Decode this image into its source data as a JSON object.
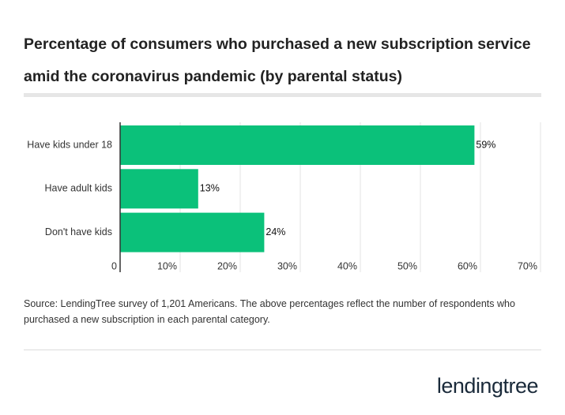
{
  "chart_data": {
    "type": "bar",
    "orientation": "horizontal",
    "title": "Percentage of consumers who purchased a new subscription service amid the coronavirus pandemic (by parental status)",
    "categories": [
      "Have kids under 18",
      "Have adult kids",
      "Don't have kids"
    ],
    "values": [
      59,
      13,
      24
    ],
    "value_labels": [
      "59%",
      "13%",
      "24%"
    ],
    "color": "#0bc17a",
    "xlim": [
      0,
      70
    ],
    "xticks": [
      0,
      {
        "value": 10,
        "label": "10%"
      },
      {
        "value": 20,
        "label": "20%"
      },
      {
        "value": 30,
        "label": "30%"
      },
      {
        "value": 40,
        "label": "40%"
      },
      {
        "value": 50,
        "label": "50%"
      },
      {
        "value": 60,
        "label": "60%"
      },
      {
        "value": 70,
        "label": "70%"
      }
    ],
    "grid": true,
    "source": "Source: LendingTree survey of 1,201 Americans. The above percentages reflect the number of respondents who purchased a new subscription in each parental category."
  },
  "brand": "lendingtree"
}
